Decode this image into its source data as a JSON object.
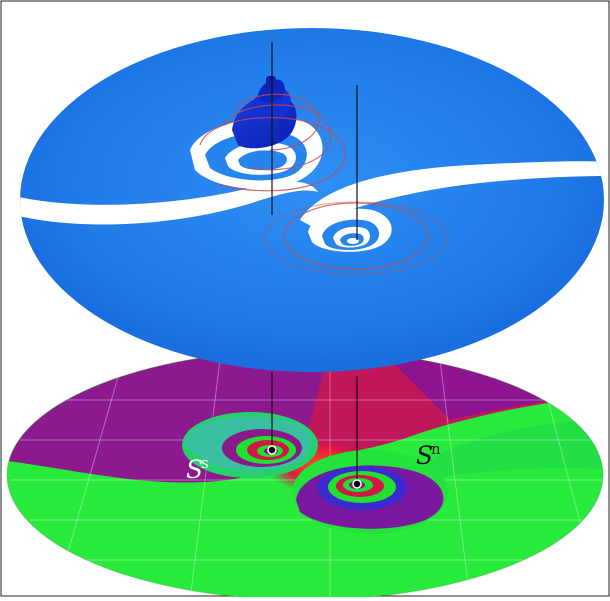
{
  "figure": {
    "labels": {
      "stable_base": "S",
      "stable_superscript": "s",
      "unstable_base": "S",
      "unstable_superscript": "n"
    }
  },
  "colors": {
    "upper_surface": "#2a86f0",
    "upper_dark": "#0a2fc8",
    "lower_green": "#22ee33",
    "lower_purple": "#8a1890",
    "lower_red": "#e01040",
    "spiral_line": "#c84848",
    "marker": "#000000"
  }
}
